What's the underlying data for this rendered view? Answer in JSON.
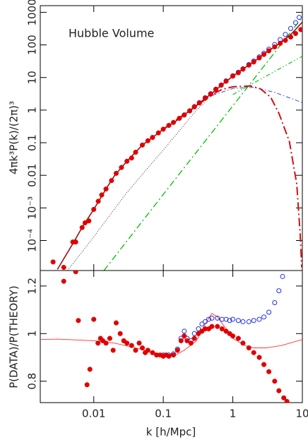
{
  "chart_data": [
    {
      "type": "line",
      "xscale": "log",
      "yscale": "log",
      "annotation": "Hubble Volume",
      "ylabel": "4πk³P(k)/(2π)³",
      "xlim": [
        0.0017,
        10
      ],
      "xticks": [
        0.01,
        0.1,
        1,
        10
      ],
      "ylim": [
        1.2e-05,
        1600
      ],
      "yticks": [
        {
          "value": 0.0001,
          "label": "10⁻⁴"
        },
        {
          "value": 0.001,
          "label": "10⁻³"
        },
        0.01,
        0.1,
        1,
        10,
        100,
        1000
      ],
      "series": [
        {
          "style": "black-dotted",
          "color": "#333333",
          "x": [
            0.0042,
            0.01,
            0.03,
            0.1,
            0.2,
            0.3,
            0.4
          ],
          "values": [
            1.2e-05,
            0.00013,
            0.003,
            0.06,
            0.35,
            1.0,
            1.8
          ]
        },
        {
          "style": "dash-dot",
          "color": "#00c000",
          "x": [
            0.014,
            0.1,
            1,
            10
          ],
          "values": [
            1.2e-05,
            0.0026,
            1.35,
            710
          ]
        },
        {
          "style": "dash-dot-dot",
          "color": "#00c000",
          "x": [
            1,
            2,
            5,
            10
          ],
          "values": [
            3,
            6.8,
            20,
            45
          ]
        },
        {
          "style": "dash-dot-thin",
          "color": "#3050e0",
          "x": [
            0.3,
            0.5,
            1,
            2,
            4,
            10
          ],
          "values": [
            1.35,
            2.8,
            4.6,
            5,
            3.5,
            1.7
          ]
        },
        {
          "style": "dash-dot-thick",
          "color": "#d01010",
          "x": [
            0.1,
            0.3,
            0.5,
            0.7,
            1,
            1.8,
            2.5,
            3.5,
            4.6,
            6.5,
            8.3,
            9.3,
            9.8
          ],
          "values": [
            0.26,
            1.35,
            3.0,
            4.3,
            5.2,
            5.5,
            4.5,
            2.5,
            0.8,
            0.11,
            0.0055,
            0.00016,
            1.5e-05
          ]
        },
        {
          "style": "points-open",
          "color": "#2030e0",
          "x": [
            0.2,
            0.24,
            0.28,
            0.33,
            0.4,
            0.48,
            0.57,
            0.68,
            0.8,
            1,
            1.2,
            1.4,
            1.7,
            2,
            2.4,
            2.8,
            3.3,
            4,
            4.8,
            5.7,
            6.8,
            8,
            9
          ],
          "values": [
            0.71,
            0.95,
            1.28,
            1.7,
            2.4,
            3.2,
            4.4,
            5.9,
            7.9,
            11.3,
            14.5,
            18.5,
            25,
            32,
            43,
            56,
            74,
            103,
            145,
            210,
            320,
            480,
            700
          ]
        },
        {
          "style": "solid",
          "color": "#a01010",
          "x": [
            0.003,
            0.005,
            0.007,
            0.01,
            0.015,
            0.02,
            0.03,
            0.05,
            0.07,
            0.1,
            0.15,
            0.2,
            0.3,
            0.5,
            0.7,
            1,
            1.5,
            2,
            3,
            5,
            7,
            10
          ],
          "values": [
            1.3e-05,
            8e-05,
            0.00028,
            0.0009,
            0.0038,
            0.01,
            0.027,
            0.085,
            0.145,
            0.26,
            0.45,
            0.71,
            1.4,
            3.3,
            6,
            11,
            20,
            30,
            58,
            120,
            220,
            500
          ]
        },
        {
          "style": "points-filled",
          "color": "#e00000",
          "x": [
            0.0026,
            0.0037,
            0.005,
            0.0055,
            0.0068,
            0.0075,
            0.0085,
            0.01,
            0.0116,
            0.013,
            0.015,
            0.018,
            0.021,
            0.025,
            0.03,
            0.035,
            0.04,
            0.05,
            0.06,
            0.07,
            0.085,
            0.1,
            0.12,
            0.14,
            0.17,
            0.2,
            0.24,
            0.28,
            0.33,
            0.4,
            0.48,
            0.57,
            0.68,
            0.8,
            1,
            1.2,
            1.4,
            1.7,
            2,
            2.4,
            2.8,
            3.3,
            4,
            4.8,
            5.7,
            6.8,
            8,
            9.5
          ],
          "values": [
            2.2e-05,
            1.5e-05,
            9e-05,
            9e-05,
            0.00025,
            0.00035,
            0.0004,
            0.0009,
            0.0016,
            0.0025,
            0.0038,
            0.0069,
            0.0115,
            0.0174,
            0.027,
            0.034,
            0.051,
            0.085,
            0.115,
            0.145,
            0.2,
            0.26,
            0.34,
            0.42,
            0.56,
            0.71,
            0.95,
            1.26,
            1.66,
            2.3,
            3.1,
            4.3,
            5.8,
            7.7,
            11,
            14,
            18,
            24,
            30,
            40,
            51,
            66,
            87,
            112,
            138,
            174,
            224,
            295
          ]
        }
      ]
    },
    {
      "type": "line",
      "xscale": "log",
      "ylabel": "P(DATA)/P(THEORY)",
      "xlabel": "k [h/Mpc]",
      "xlim": [
        0.0017,
        10
      ],
      "xticks": [
        0.01,
        0.1,
        1,
        10
      ],
      "ylim": [
        0.71,
        1.265
      ],
      "yticks": [
        0.8,
        1,
        1.2
      ],
      "series": [
        {
          "style": "thin-solid",
          "color": "#ff3030",
          "x": [
            0.0017,
            0.003,
            0.01,
            0.02,
            0.04,
            0.07,
            0.1,
            0.15,
            0.2,
            0.3,
            0.4,
            0.5,
            0.6,
            0.8,
            1,
            1.5,
            2,
            3,
            5,
            10
          ],
          "values": [
            0.975,
            0.977,
            0.97,
            0.96,
            0.94,
            0.92,
            0.915,
            0.91,
            0.93,
            0.97,
            1.04,
            1.085,
            1.07,
            1.02,
            0.98,
            0.95,
            0.94,
            0.94,
            0.95,
            0.975
          ]
        },
        {
          "style": "points-open",
          "color": "#2030e0",
          "x": [
            0.1,
            0.12,
            0.14,
            0.16,
            0.18,
            0.2,
            0.22,
            0.25,
            0.28,
            0.32,
            0.36,
            0.4,
            0.45,
            0.5,
            0.6,
            0.7,
            0.8,
            0.9,
            1,
            1.2,
            1.4,
            1.7,
            2,
            2.4,
            2.8,
            3.3,
            4,
            4.6,
            5.2
          ],
          "values": [
            0.91,
            0.91,
            0.915,
            0.935,
            0.98,
            1.01,
            0.98,
            0.97,
            1.0,
            1.02,
            1.04,
            1.05,
            1.06,
            1.065,
            1.065,
            1.06,
            1.06,
            1.055,
            1.06,
            1.055,
            1.05,
            1.05,
            1.055,
            1.06,
            1.07,
            1.09,
            1.13,
            1.18,
            1.24
          ]
        },
        {
          "style": "points-filled",
          "color": "#e00000",
          "x": [
            0.0037,
            0.0055,
            0.006,
            0.008,
            0.0088,
            0.01,
            0.0115,
            0.0125,
            0.0135,
            0.015,
            0.017,
            0.019,
            0.021,
            0.024,
            0.027,
            0.03,
            0.035,
            0.04,
            0.045,
            0.05,
            0.055,
            0.06,
            0.07,
            0.08,
            0.09,
            0.1,
            0.11,
            0.12,
            0.14,
            0.16,
            0.18,
            0.2,
            0.22,
            0.25,
            0.28,
            0.32,
            0.36,
            0.4,
            0.45,
            0.5,
            0.6,
            0.7,
            0.8,
            0.9,
            1,
            1.2,
            1.4,
            1.7,
            2,
            2.4,
            2.8,
            3.3,
            4,
            4.6,
            5.4,
            6
          ],
          "values": [
            1.22,
            1.26,
            1.055,
            0.785,
            0.85,
            1.06,
            0.96,
            0.98,
            0.97,
            0.96,
            0.98,
            0.93,
            1.045,
            1.0,
            0.97,
            0.96,
            0.95,
            0.93,
            0.96,
            0.94,
            0.92,
            0.93,
            0.92,
            0.91,
            0.91,
            0.905,
            0.91,
            0.905,
            0.91,
            0.93,
            0.97,
            0.99,
            0.97,
            0.96,
            0.98,
            1.0,
            1.01,
            1.02,
            1.02,
            1.03,
            1.03,
            1.02,
            1.01,
            1.0,
            0.99,
            0.98,
            0.96,
            0.94,
            0.92,
            0.9,
            0.87,
            0.84,
            0.8,
            0.76,
            0.73,
            0.715
          ]
        }
      ]
    }
  ]
}
